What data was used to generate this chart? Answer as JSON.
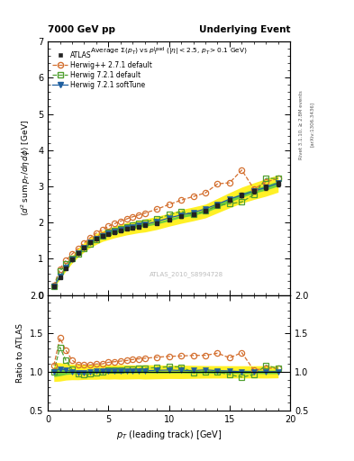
{
  "title_left": "7000 GeV pp",
  "title_right": "Underlying Event",
  "watermark": "ATLAS_2010_S8994728",
  "side_label_top": "Rivet 3.1.10, ≥ 2.8M events",
  "side_label_bot": "[arXiv:1306.3436]",
  "xlabel": "$p_T$ (leading track) [GeV]",
  "ylabel_ratio": "Ratio to ATLAS",
  "xlim": [
    0,
    20
  ],
  "ylim_main": [
    0,
    7
  ],
  "ylim_ratio": [
    0.5,
    2.0
  ],
  "atlas_x": [
    0.5,
    1.0,
    1.5,
    2.0,
    2.5,
    3.0,
    3.5,
    4.0,
    4.5,
    5.0,
    5.5,
    6.0,
    6.5,
    7.0,
    7.5,
    8.0,
    9.0,
    10.0,
    11.0,
    12.0,
    13.0,
    14.0,
    15.0,
    16.0,
    17.0,
    18.0,
    19.0
  ],
  "atlas_y": [
    0.24,
    0.5,
    0.75,
    0.98,
    1.17,
    1.32,
    1.45,
    1.55,
    1.63,
    1.69,
    1.74,
    1.79,
    1.83,
    1.86,
    1.89,
    1.92,
    1.99,
    2.08,
    2.17,
    2.24,
    2.32,
    2.47,
    2.62,
    2.76,
    2.87,
    2.97,
    3.08
  ],
  "atlas_yerr": [
    0.015,
    0.025,
    0.025,
    0.025,
    0.025,
    0.025,
    0.025,
    0.025,
    0.025,
    0.025,
    0.025,
    0.025,
    0.025,
    0.025,
    0.025,
    0.025,
    0.03,
    0.03,
    0.03,
    0.04,
    0.04,
    0.05,
    0.05,
    0.06,
    0.06,
    0.07,
    0.07
  ],
  "atlas_sys_lo": [
    0.21,
    0.44,
    0.67,
    0.88,
    1.05,
    1.19,
    1.31,
    1.4,
    1.48,
    1.53,
    1.58,
    1.62,
    1.66,
    1.69,
    1.72,
    1.74,
    1.81,
    1.9,
    1.98,
    2.05,
    2.13,
    2.27,
    2.41,
    2.54,
    2.64,
    2.73,
    2.84
  ],
  "atlas_sys_hi": [
    0.27,
    0.56,
    0.83,
    1.08,
    1.29,
    1.45,
    1.59,
    1.7,
    1.78,
    1.85,
    1.9,
    1.96,
    2.0,
    2.03,
    2.06,
    2.1,
    2.17,
    2.26,
    2.36,
    2.43,
    2.51,
    2.67,
    2.83,
    2.98,
    3.1,
    3.21,
    3.32
  ],
  "herwig_pp_x": [
    0.5,
    1.0,
    1.5,
    2.0,
    2.5,
    3.0,
    3.5,
    4.0,
    4.5,
    5.0,
    5.5,
    6.0,
    6.5,
    7.0,
    7.5,
    8.0,
    9.0,
    10.0,
    11.0,
    12.0,
    13.0,
    14.0,
    15.0,
    16.0,
    17.0,
    18.0,
    19.0
  ],
  "herwig_pp_y": [
    0.26,
    0.72,
    0.96,
    1.13,
    1.28,
    1.44,
    1.58,
    1.71,
    1.8,
    1.9,
    1.97,
    2.04,
    2.1,
    2.16,
    2.21,
    2.26,
    2.37,
    2.5,
    2.62,
    2.72,
    2.82,
    3.07,
    3.1,
    3.45,
    2.93,
    3.12,
    3.22
  ],
  "herwig72_default_x": [
    0.5,
    1.0,
    1.5,
    2.0,
    2.5,
    3.0,
    3.5,
    4.0,
    4.5,
    5.0,
    5.5,
    6.0,
    6.5,
    7.0,
    7.5,
    8.0,
    9.0,
    10.0,
    11.0,
    12.0,
    13.0,
    14.0,
    15.0,
    16.0,
    17.0,
    18.0,
    19.0
  ],
  "herwig72_default_y": [
    0.24,
    0.66,
    0.86,
    1.01,
    1.14,
    1.28,
    1.41,
    1.53,
    1.63,
    1.72,
    1.78,
    1.84,
    1.89,
    1.93,
    1.97,
    2.01,
    2.1,
    2.22,
    2.31,
    2.22,
    2.32,
    2.47,
    2.52,
    2.57,
    2.77,
    3.22,
    3.22
  ],
  "herwig72_soft_x": [
    0.5,
    1.0,
    1.5,
    2.0,
    2.5,
    3.0,
    3.5,
    4.0,
    4.5,
    5.0,
    5.5,
    6.0,
    6.5,
    7.0,
    7.5,
    8.0,
    9.0,
    10.0,
    11.0,
    12.0,
    13.0,
    14.0,
    15.0,
    16.0,
    17.0,
    18.0,
    19.0
  ],
  "herwig72_soft_y": [
    0.24,
    0.52,
    0.77,
    0.98,
    1.16,
    1.31,
    1.45,
    1.56,
    1.64,
    1.71,
    1.76,
    1.81,
    1.85,
    1.89,
    1.92,
    1.95,
    2.03,
    2.13,
    2.21,
    2.28,
    2.38,
    2.51,
    2.65,
    2.76,
    2.87,
    2.97,
    3.09
  ],
  "color_atlas": "#222222",
  "color_herwig_pp": "#d47030",
  "color_herwig72_default": "#50a030",
  "color_herwig72_soft": "#2060a0",
  "band_color_yellow": "#ffee00",
  "band_color_green": "#60cc40"
}
